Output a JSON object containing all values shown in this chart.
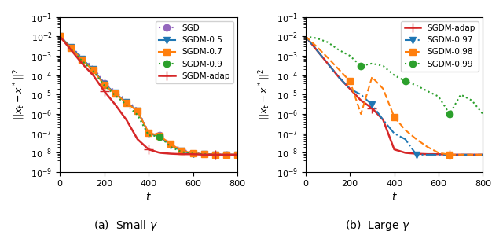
{
  "title_a": "(a)  Small $\\gamma$",
  "title_b": "(b)  Large $\\gamma$",
  "ylabel": "$||x_t - x^*||^2$",
  "xlabel": "$t$",
  "left": {
    "SGD": {
      "color": "#9467bd",
      "linestyle": "dotted",
      "marker": "o",
      "markevery_idx": [
        4,
        9,
        15
      ],
      "data_x": [
        0,
        50,
        100,
        150,
        200,
        250,
        300,
        350,
        400,
        450,
        500,
        550,
        600,
        650,
        700,
        750,
        800
      ],
      "data_y": [
        0.01,
        0.003,
        0.0008,
        0.00025,
        4e-05,
        1.5e-05,
        5e-06,
        1.8e-06,
        1.2e-07,
        8e-08,
        3e-08,
        1.5e-08,
        1e-08,
        9e-09,
        8.5e-09,
        8e-09,
        8e-09
      ]
    },
    "SGDM-0.5": {
      "color": "#1f77b4",
      "linestyle": "solid",
      "marker": "v",
      "markevery_idx": [],
      "data_x": [
        0,
        50,
        100,
        150,
        200,
        250,
        300,
        350,
        400,
        450,
        500,
        550,
        600,
        650,
        700,
        750,
        800
      ],
      "data_y": [
        0.01,
        0.0028,
        0.0007,
        0.0002,
        3.5e-05,
        1.2e-05,
        4e-06,
        1.5e-06,
        1e-07,
        7e-08,
        2.5e-08,
        1.2e-08,
        9e-09,
        8.5e-09,
        8e-09,
        8e-09,
        8e-09
      ]
    },
    "SGDM-0.7": {
      "color": "#ff7f0e",
      "linestyle": "solid",
      "marker": "s",
      "markevery_idx": [],
      "data_x": [
        0,
        50,
        100,
        150,
        200,
        250,
        300,
        350,
        400,
        450,
        500,
        550,
        600,
        650,
        700,
        750,
        800
      ],
      "data_y": [
        0.01,
        0.0025,
        0.0006,
        0.00018,
        3.2e-05,
        1.1e-05,
        3.8e-06,
        1.4e-06,
        1.1e-07,
        7.5e-08,
        2.8e-08,
        1.3e-08,
        9.5e-09,
        8.5e-09,
        8e-09,
        8e-09,
        8e-09
      ]
    },
    "SGDM-0.9": {
      "color": "#2ca02c",
      "linestyle": "dotted",
      "marker": "o",
      "markevery_idx": [
        9
      ],
      "data_x": [
        0,
        50,
        100,
        150,
        200,
        250,
        300,
        350,
        400,
        450,
        500,
        550,
        600,
        650,
        700,
        750,
        800
      ],
      "data_y": [
        0.01,
        0.0022,
        0.00055,
        0.00016,
        3e-05,
        9e-06,
        3e-06,
        9e-07,
        8e-08,
        7e-08,
        2e-08,
        1.1e-08,
        9e-09,
        8.5e-09,
        8e-09,
        8e-09,
        8e-09
      ]
    },
    "SGDM-adap": {
      "color": "#d62728",
      "linestyle": "solid",
      "marker": "+",
      "markevery_idx": [
        4,
        8,
        14
      ],
      "data_x": [
        0,
        50,
        100,
        150,
        200,
        250,
        300,
        350,
        400,
        450,
        500,
        550,
        600,
        650,
        700,
        750,
        800
      ],
      "data_y": [
        0.01,
        0.002,
        0.0004,
        0.0001,
        1.5e-05,
        3e-06,
        5e-07,
        5e-08,
        1.5e-08,
        1e-08,
        9e-09,
        8.5e-09,
        8.5e-09,
        8e-09,
        8e-09,
        8e-09,
        8e-09
      ]
    }
  },
  "right": {
    "SGDM-adap": {
      "color": "#d62728",
      "linestyle": "solid",
      "marker": "+",
      "markevery_idx": [
        6,
        13
      ],
      "data_x": [
        0,
        50,
        100,
        150,
        200,
        250,
        300,
        350,
        400,
        450,
        500,
        550,
        600,
        650,
        700,
        750,
        800
      ],
      "data_y": [
        0.01,
        0.002,
        0.0004,
        8e-05,
        2e-05,
        5e-06,
        2e-06,
        5e-07,
        1.5e-08,
        1e-08,
        9e-09,
        8.5e-09,
        8.5e-09,
        8e-09,
        8e-09,
        8e-09,
        8e-09
      ]
    },
    "SGDM-0.97": {
      "color": "#1f77b4",
      "linestyle": "dashdot",
      "marker": "v",
      "markevery_idx": [
        6,
        10
      ],
      "data_x": [
        0,
        50,
        100,
        150,
        200,
        250,
        300,
        350,
        400,
        450,
        500,
        550,
        600,
        650,
        700,
        750,
        800
      ],
      "data_y": [
        0.01,
        0.002,
        0.0004,
        8e-05,
        2e-05,
        1e-05,
        3e-06,
        5e-07,
        1e-07,
        5e-08,
        8e-09,
        8e-09,
        8e-09,
        8e-09,
        8e-09,
        8e-09,
        8e-09
      ]
    },
    "SGDM-0.98": {
      "color": "#ff7f0e",
      "linestyle": "dashed",
      "marker": "s",
      "markevery_idx": [
        4,
        8,
        13
      ],
      "data_x": [
        0,
        50,
        100,
        150,
        200,
        250,
        300,
        350,
        400,
        450,
        500,
        550,
        600,
        650,
        700,
        750,
        800
      ],
      "data_y": [
        0.01,
        0.003,
        0.0008,
        0.0002,
        5e-05,
        1e-06,
        8e-05,
        2e-05,
        7e-07,
        1.5e-07,
        5e-08,
        2e-08,
        1e-08,
        8e-09,
        8e-09,
        8e-09,
        8e-09
      ]
    },
    "SGDM-0.99": {
      "color": "#2ca02c",
      "linestyle": "dotted",
      "marker": "o",
      "markevery_idx": [
        5,
        9,
        13
      ],
      "data_x": [
        0,
        50,
        100,
        150,
        200,
        250,
        300,
        350,
        400,
        450,
        500,
        550,
        600,
        650,
        700,
        750,
        800
      ],
      "data_y": [
        0.01,
        0.008,
        0.005,
        0.002,
        0.001,
        0.0003,
        0.0004,
        0.0003,
        0.0001,
        5e-05,
        3e-05,
        1.5e-05,
        8e-06,
        1e-06,
        1e-05,
        5e-06,
        1e-06
      ]
    }
  }
}
